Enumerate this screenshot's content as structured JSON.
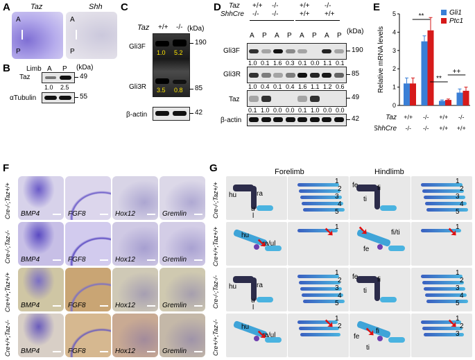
{
  "panels": {
    "A": {
      "letter": "A",
      "img_left": "Taz",
      "img_right": "Shh",
      "a": "A",
      "p": "P"
    },
    "B": {
      "letter": "B",
      "limb": "Limb",
      "col_a": "A",
      "col_p": "P",
      "kda": "(kDa)",
      "row1": "Taz",
      "row1_mw": "49",
      "quant": [
        "1.0",
        "2.5"
      ],
      "row2": "αTubulin",
      "row2_mw": "55"
    },
    "C": {
      "letter": "C",
      "geno": "Taz",
      "g1": "+/+",
      "g2": "-/-",
      "kda": "(kDa)",
      "gli3f": "Gli3F",
      "gli3r": "Gli3R",
      "mw190": "190",
      "mw85": "85",
      "q_top": [
        "1.0",
        "5.2"
      ],
      "q_bot": [
        "3.5",
        "0.8"
      ],
      "actin": "β-actin",
      "mw42": "42"
    },
    "D": {
      "letter": "D",
      "row_taz": "Taz",
      "row_shh": "ShhCre",
      "taz_g": [
        "+/+",
        "-/-",
        "+/+",
        "-/-"
      ],
      "shh_g": [
        "-/-",
        "-/-",
        "+/+",
        "+/+"
      ],
      "ap": [
        "A",
        "P",
        "A",
        "P",
        "A",
        "P",
        "A",
        "P"
      ],
      "kda": "(kDa)",
      "gli3f": "Gli3F",
      "gli3r": "Gli3R",
      "taz": "Taz",
      "actin": "β-actin",
      "mw190": "190",
      "mw85": "85",
      "mw49": "49",
      "mw42": "42",
      "q1": [
        "1.0",
        "0.1",
        "1.6",
        "0.3",
        "0.1",
        "0.0",
        "1.1",
        "0.1"
      ],
      "q2": [
        "1.0",
        "0.4",
        "0.1",
        "0.4",
        "1.6",
        "1.1",
        "1.2",
        "0.6"
      ],
      "q3": [
        "0.1",
        "1.0",
        "0.0",
        "0.0",
        "0.1",
        "1.0",
        "0.0",
        "0.0"
      ]
    },
    "E": {
      "letter": "E",
      "ylabel": "Relative mRNA levels",
      "legend": [
        "Gli1",
        "Ptc1"
      ],
      "sig": [
        "**",
        "**",
        "++"
      ],
      "row_taz": "Taz",
      "row_shh": "ShhCre",
      "taz_g": [
        "+/+",
        "-/-",
        "+/+",
        "-/-"
      ],
      "shh_g": [
        "-/-",
        "-/-",
        "+/+",
        "+/+"
      ],
      "yticks": [
        "0",
        "1",
        "2",
        "3",
        "4",
        "5"
      ]
    },
    "F": {
      "letter": "F",
      "rows": [
        "Cre-/-;Taz+/+",
        "Cre-/-;Taz-/-",
        "Cre+/+;Taz+/+",
        "Cre+/+;Taz-/-"
      ],
      "genes": [
        "BMP4",
        "FGF8",
        "Hox12",
        "Gremlin"
      ]
    },
    "G": {
      "letter": "G",
      "forelimb": "Forelimb",
      "hindlimb": "Hindlimb",
      "rows": [
        "Cre-/-;Taz+/+",
        "Cre+/+;Taz+/+",
        "Cre-/-;Taz-/-",
        "Cre+/+;Taz-/-"
      ],
      "labels": {
        "hu": "hu",
        "ra": "ra",
        "u": "u",
        "l": "l",
        "raul": "ra/ul",
        "fe": "fe",
        "ti": "ti",
        "fi": "fi",
        "fiti": "fi/ti"
      },
      "digits": [
        "1",
        "2",
        "3",
        "4",
        "5"
      ]
    }
  },
  "chart_data": {
    "type": "bar",
    "categories": [
      "+/+ | -/-",
      "-/- | -/-",
      "+/+ | +/+",
      "-/- | +/+"
    ],
    "series": [
      {
        "name": "Gli1",
        "values": [
          1.2,
          3.5,
          0.25,
          0.7
        ]
      },
      {
        "name": "Ptc1",
        "values": [
          1.2,
          4.1,
          0.3,
          0.8
        ]
      }
    ],
    "errors": [
      {
        "name": "Gli1",
        "values": [
          0.3,
          0.3,
          0.05,
          0.2
        ]
      },
      {
        "name": "Ptc1",
        "values": [
          0.3,
          0.7,
          0.05,
          0.2
        ]
      }
    ],
    "ylabel": "Relative mRNA levels",
    "ylim": [
      0,
      5
    ],
    "colors": {
      "Gli1": "#3a7fd6",
      "Ptc1": "#d61a1a"
    },
    "legend": "top-right"
  }
}
